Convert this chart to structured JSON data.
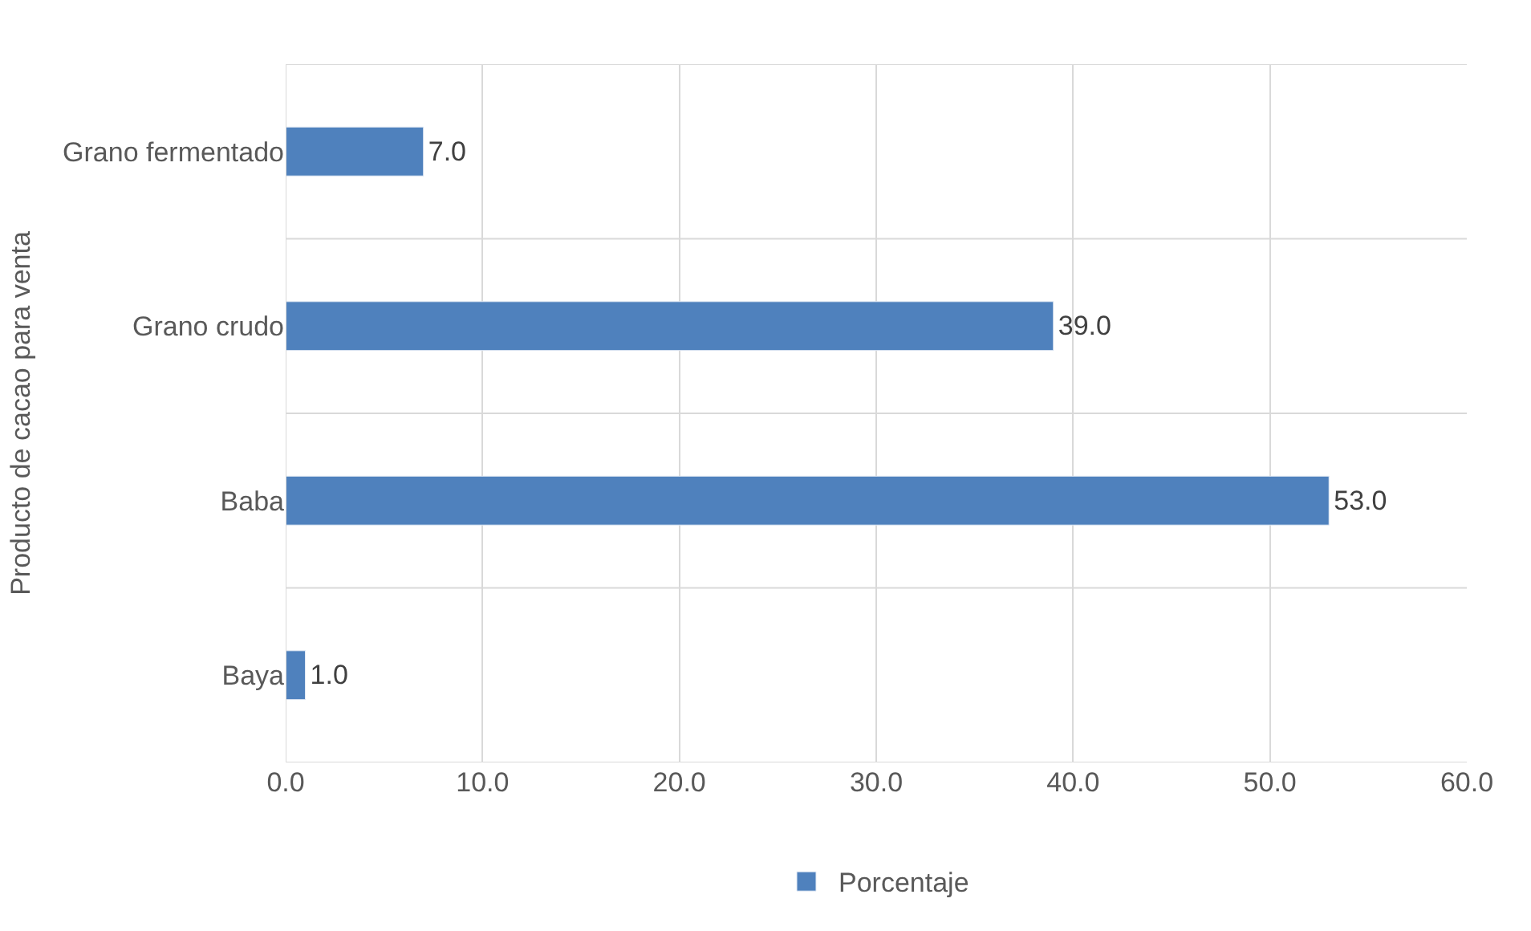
{
  "chart_data": {
    "type": "bar",
    "orientation": "horizontal",
    "ylabel": "Producto de cacao para venta",
    "categories": [
      "Grano fermentado",
      "Grano crudo",
      "Baba",
      "Baya"
    ],
    "series": [
      {
        "name": "Porcentaje",
        "color": "#4f81bd",
        "values": [
          7.0,
          39.0,
          53.0,
          1.0
        ],
        "value_labels": [
          "7.0",
          "39.0",
          "53.0",
          "1.0"
        ]
      }
    ],
    "xlim": [
      0,
      60
    ],
    "xticks": [
      {
        "value": 0,
        "label": "0.0"
      },
      {
        "value": 10,
        "label": "10.0"
      },
      {
        "value": 20,
        "label": "20.0"
      },
      {
        "value": 30,
        "label": "30.0"
      },
      {
        "value": 40,
        "label": "40.0"
      },
      {
        "value": 50,
        "label": "50.0"
      },
      {
        "value": 60,
        "label": "60.0"
      }
    ],
    "grid": true,
    "legend": "bottom"
  }
}
